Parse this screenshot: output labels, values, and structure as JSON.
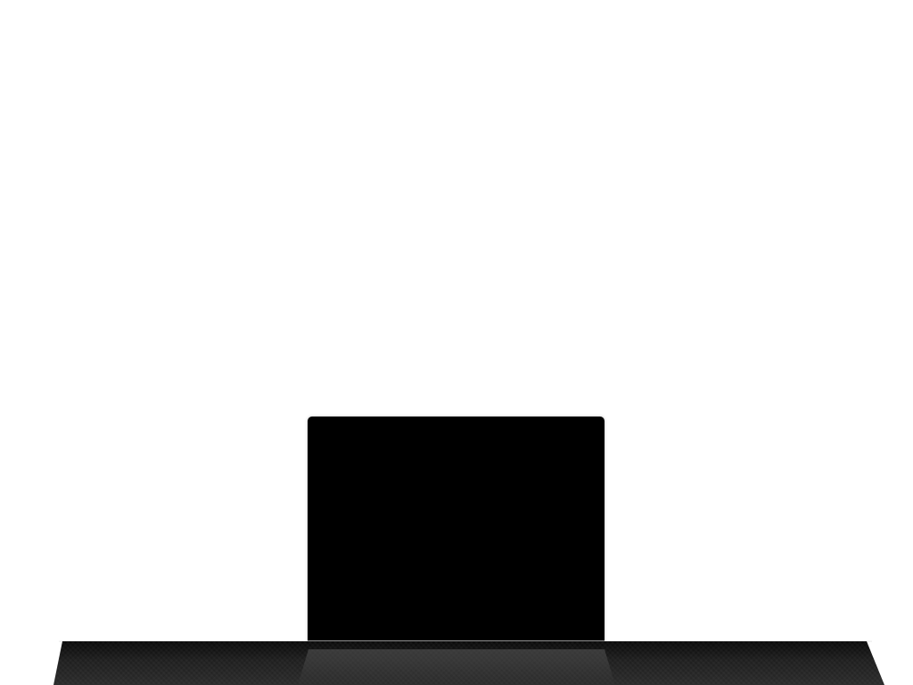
{
  "desktop": {
    "background_color": "#ffffff"
  },
  "window": {
    "title": "",
    "background_color": "#000000"
  },
  "dock": {
    "color_top": "#0a0a0a",
    "color_bottom": "#2a2a2a"
  }
}
